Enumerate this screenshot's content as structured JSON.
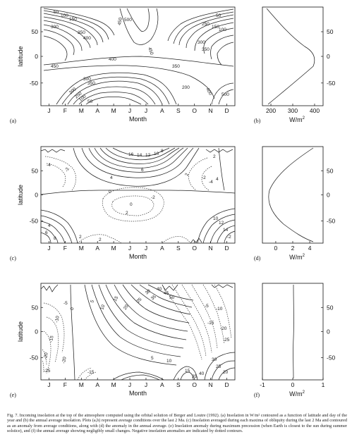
{
  "figure": {
    "month_labels": [
      "J",
      "F",
      "M",
      "A",
      "M",
      "J",
      "J",
      "A",
      "S",
      "O",
      "N",
      "D"
    ],
    "x_axis_label": "Month",
    "y_axis_label": "latitude",
    "lat_ticks": [
      "50",
      "0",
      "-50"
    ],
    "flux_unit": "W/m",
    "flux_unit_exp": "2",
    "panels": {
      "a": {
        "tag": "(a)",
        "contour_labels": [
          "50",
          "100",
          "150",
          "200",
          "250",
          "300",
          "350",
          "400",
          "450",
          "500",
          "450",
          "400",
          "350",
          "300",
          "250",
          "200",
          "150",
          "100",
          "50",
          "400",
          "450",
          "350",
          "400",
          "300",
          "350",
          "200",
          "250",
          "100",
          "150",
          "50",
          "500"
        ]
      },
      "b": {
        "tag": "(b)",
        "x_ticks": [
          "200",
          "300",
          "400"
        ]
      },
      "c": {
        "tag": "(c)",
        "contour_labels": [
          "16",
          "14",
          "12",
          "10",
          "8",
          "6",
          "4",
          "2",
          "0",
          "-2",
          "-4",
          "0",
          "2",
          "4",
          "6",
          "8",
          "-2",
          "-4",
          "-2",
          "0",
          "2",
          "4",
          "6",
          "8",
          "10",
          "12",
          "14",
          "-2",
          "2",
          "2"
        ]
      },
      "d": {
        "tag": "(d)",
        "x_ticks": [
          "0",
          "2",
          "4"
        ]
      },
      "e": {
        "tag": "(e)",
        "contour_labels": [
          "-5",
          "-10",
          "-15",
          "-20",
          "-25",
          "-5",
          "0",
          "5",
          "10",
          "15",
          "20",
          "25",
          "30",
          "35",
          "40",
          "45",
          "50",
          "-5",
          "-10",
          "-15",
          "-20",
          "-25",
          "5",
          "10",
          "15",
          "20",
          "25",
          "30",
          "35",
          "40",
          "45",
          "50",
          "-20",
          "-15"
        ]
      },
      "f": {
        "tag": "(f)",
        "x_ticks": [
          "-1",
          "0",
          "1"
        ]
      }
    },
    "caption": "Fig. 7. Incoming insolation at the top of the atmosphere computed using the orbital solution of Berger and Loutre (1992). (a) Insolation in W/m² contoured as a function of latitude and day of the year and (b) the annual average insolation. Plots (a,b) represent average conditions over the last 2 Ma. (c) Insolation averaged during each maxima of obliquity during the last 2 Ma and contoured as an anomaly from average conditions, along with (d) the anomaly in the annual average. (e) Insolation anomaly during maximum precession (when Earth is closest to the sun during summer solstice), and (f) the annual average showing negligibly small changes. Negative insolation anomalies are indicated by dotted contours."
  }
}
